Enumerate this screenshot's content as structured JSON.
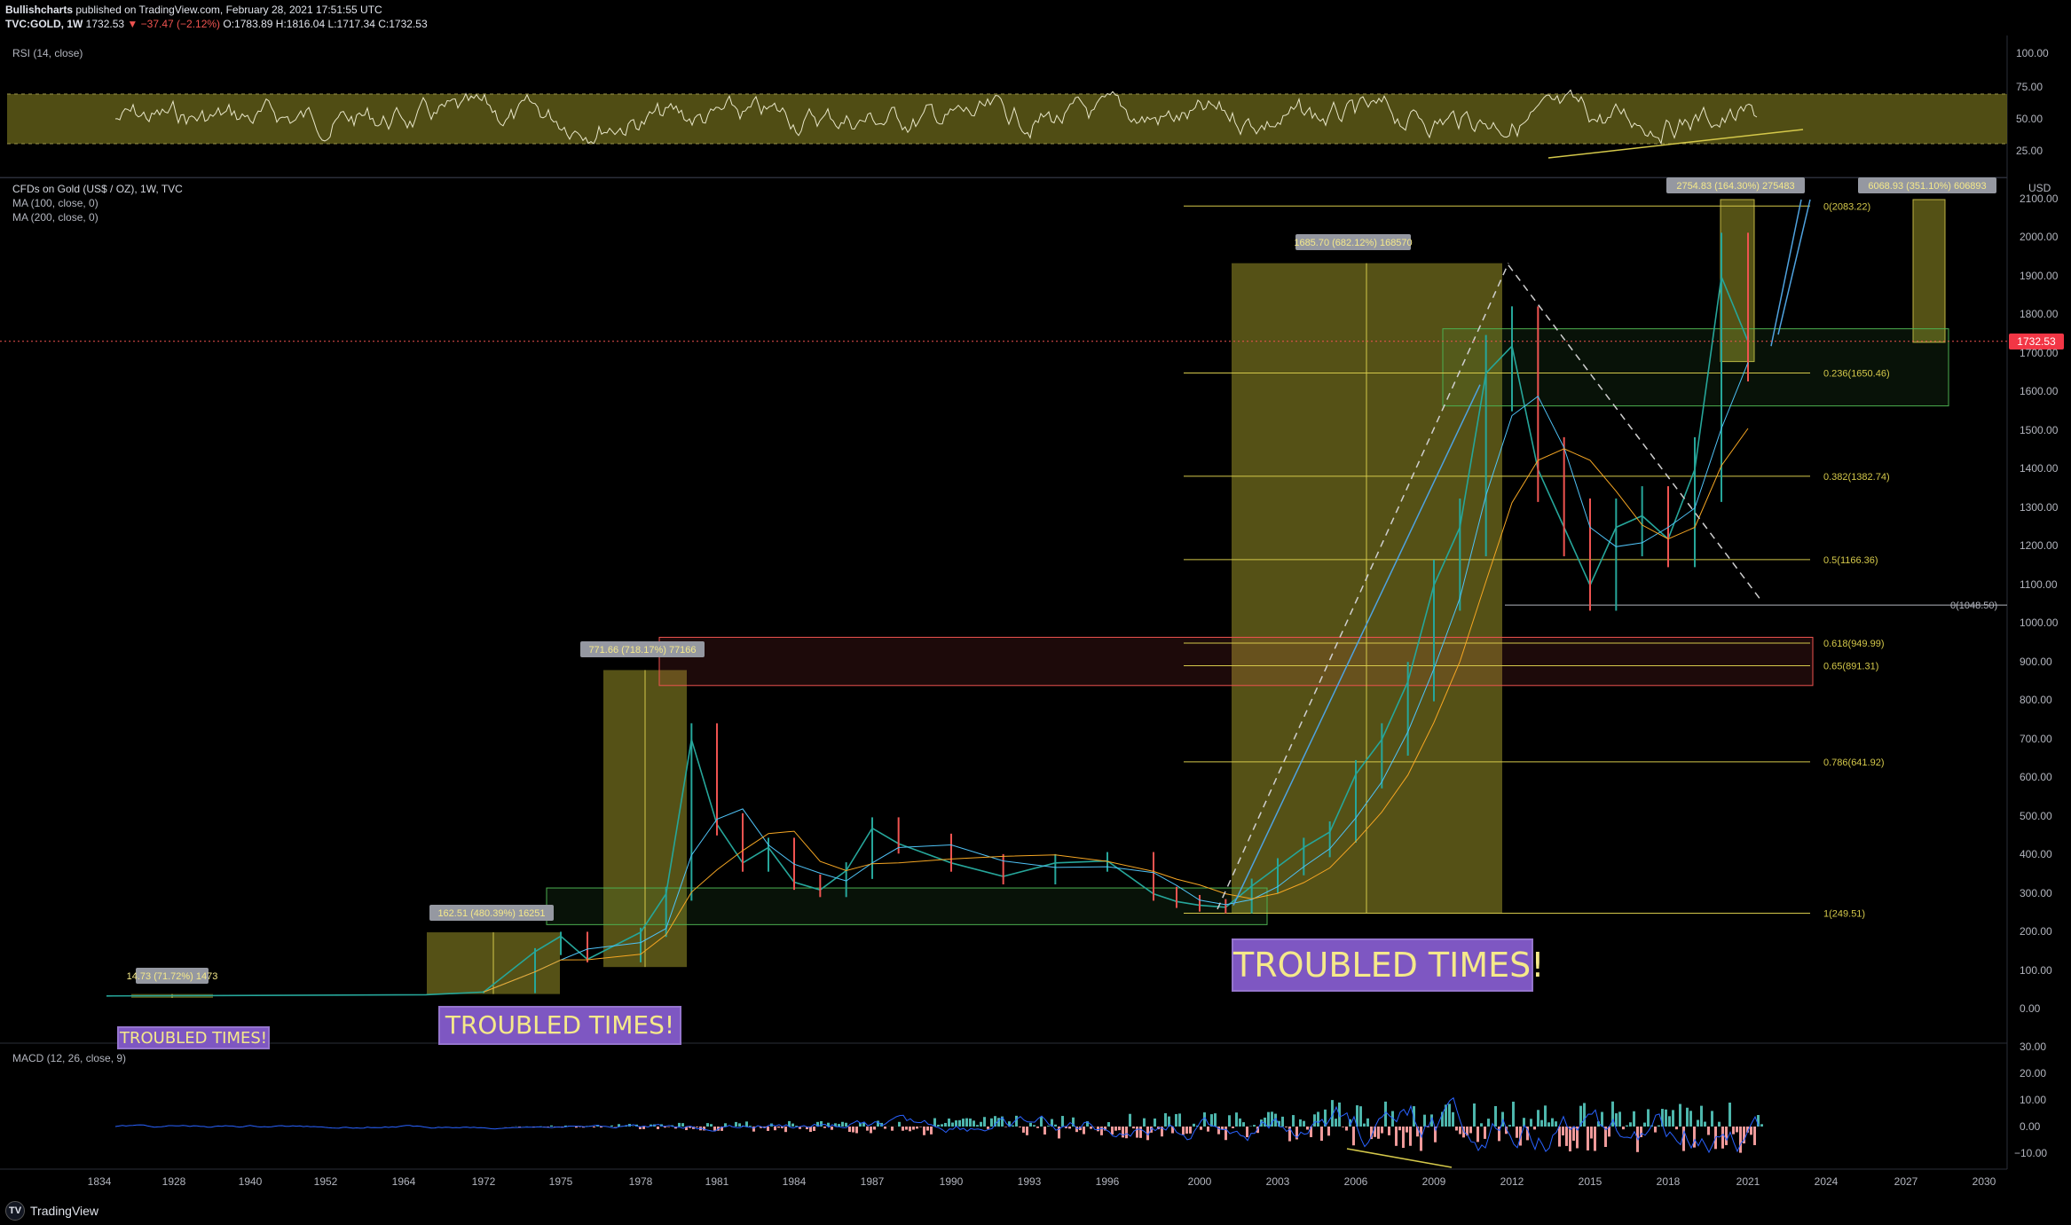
{
  "header": {
    "publisher": "Bullishcharts",
    "published_text": "published on TradingView.com, February 28, 2021 17:51:55 UTC",
    "symbol": "TVC:GOLD, 1W",
    "last": "1732.53",
    "change_arrow": "▼",
    "change": "−37.47 (−2.12%)",
    "open": "O:1783.89",
    "high": "H:1816.04",
    "low": "L:1717.34",
    "close": "C:1732.53"
  },
  "rsi": {
    "label": "RSI (14, close)",
    "ticks": [
      "100.00",
      "75.00",
      "50.00",
      "25.00"
    ]
  },
  "main": {
    "title": "CFDs on Gold (US$ / OZ), 1W, TVC",
    "ma1": "MA (100, close, 0)",
    "ma2": "MA (200, close, 0)",
    "currency": "USD",
    "last_price_tag": "1732.53",
    "price_ticks": [
      "2100.00",
      "2000.00",
      "1900.00",
      "1800.00",
      "1700.00",
      "1600.00",
      "1500.00",
      "1400.00",
      "1300.00",
      "1200.00",
      "1100.00",
      "1000.00",
      "900.00",
      "800.00",
      "700.00",
      "600.00",
      "500.00",
      "400.00",
      "300.00",
      "200.00",
      "100.00",
      "0.00"
    ]
  },
  "fib_levels": [
    {
      "label": "0(2083.22)"
    },
    {
      "label": "0.236(1650.46)"
    },
    {
      "label": "0.382(1382.74)"
    },
    {
      "label": "0.5(1166.36)"
    },
    {
      "label": "0.618(949.99)"
    },
    {
      "label": "0.65(891.31)"
    },
    {
      "label": "0.786(641.92)"
    },
    {
      "label": "1(249.51)"
    },
    {
      "label": "0(1048.50)"
    }
  ],
  "range_labels": [
    {
      "text": "14.73 (71.72%) 1473"
    },
    {
      "text": "162.51 (480.39%) 16251"
    },
    {
      "text": "771.66 (718.17%) 77166"
    },
    {
      "text": "1685.70 (682.12%) 168570"
    },
    {
      "text": "2754.83 (164.30%) 275483"
    },
    {
      "text": "6068.93 (351.10%) 606893"
    }
  ],
  "banners": [
    {
      "text": "TROUBLED TIMES!"
    },
    {
      "text": "TROUBLED TIMES!"
    },
    {
      "text": "TROUBLED TIMES!"
    }
  ],
  "macd": {
    "label": "MACD (12, 26, close, 9)",
    "ticks": [
      "30.00",
      "20.00",
      "10.00",
      "0.00",
      "−10.00"
    ]
  },
  "x_axis": [
    "1834",
    "1928",
    "1940",
    "1952",
    "1964",
    "1972",
    "1975",
    "1978",
    "1981",
    "1984",
    "1987",
    "1990",
    "1993",
    "1996",
    "2000",
    "2003",
    "2006",
    "2009",
    "2012",
    "2015",
    "2018",
    "2021",
    "2024",
    "2027",
    "2030"
  ],
  "footer": {
    "logo_text": "TradingView"
  },
  "colors": {
    "background": "#000000",
    "zone_yellow": "#5e5a18",
    "fib_line": "#d4c84a",
    "red_zone": "#ef5350",
    "green_zone": "#4caf50",
    "price_up": "#26a69a",
    "price_down": "#ef5350",
    "arrow_blue": "#4fa3e0",
    "banner_bg": "#7e57c2",
    "banner_text": "#f5e98a"
  },
  "chart_data": {
    "type": "line",
    "title": "CFDs on Gold (US$ / OZ), 1W, TVC",
    "ylabel": "USD",
    "ylim": [
      0,
      2100
    ],
    "x": [
      1972,
      1974,
      1975,
      1976,
      1978,
      1979,
      1980,
      1981,
      1982,
      1983,
      1984,
      1985,
      1986,
      1987,
      1988,
      1990,
      1992,
      1994,
      1996,
      1998,
      1999,
      2000,
      2001,
      2002,
      2003,
      2004,
      2005,
      2006,
      2007,
      2008,
      2009,
      2010,
      2011,
      2012,
      2013,
      2014,
      2015,
      2016,
      2017,
      2018,
      2019,
      2020,
      2021
    ],
    "series": [
      {
        "values": [
          45,
          150,
          190,
          130,
          200,
          300,
          700,
          480,
          380,
          420,
          330,
          310,
          360,
          470,
          430,
          380,
          345,
          380,
          385,
          300,
          280,
          270,
          265,
          320,
          370,
          420,
          460,
          610,
          700,
          850,
          1100,
          1250,
          1650,
          1720,
          1400,
          1250,
          1100,
          1250,
          1280,
          1220,
          1400,
          1900,
          1732.53
        ]
      }
    ]
  }
}
